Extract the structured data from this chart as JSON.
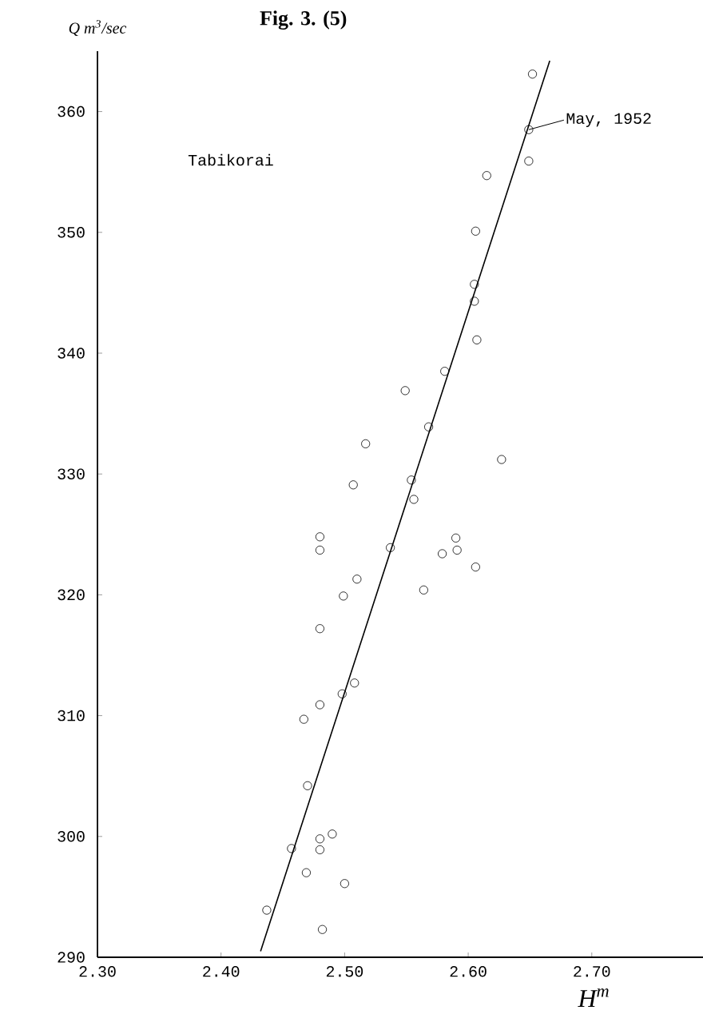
{
  "chart_data": {
    "type": "scatter",
    "title": "Fig. 3.  (5)",
    "xlabel": "H$^{m}$",
    "ylabel": "Q m$^{3}$/sec",
    "xlim": [
      2.3,
      2.79
    ],
    "ylim": [
      290,
      365
    ],
    "xticks": [
      {
        "value": 2.3,
        "label": "2.30"
      },
      {
        "value": 2.4,
        "label": "2.40"
      },
      {
        "value": 2.5,
        "label": "2.50"
      },
      {
        "value": 2.6,
        "label": "2.60"
      },
      {
        "value": 2.7,
        "label": "2.70"
      }
    ],
    "yticks": [
      290,
      300,
      310,
      320,
      330,
      340,
      350,
      360
    ],
    "marker": "circle",
    "series": [
      {
        "color": "#000000",
        "x": [
          2.652,
          2.649,
          2.649,
          2.615,
          2.606,
          2.605,
          2.605,
          2.607,
          2.581,
          2.549,
          2.568,
          2.517,
          2.627,
          2.554,
          2.507,
          2.556,
          2.48,
          2.48,
          2.59,
          2.591,
          2.579,
          2.537,
          2.606,
          2.51,
          2.499,
          2.564,
          2.48,
          2.508,
          2.498,
          2.48,
          2.467,
          2.47,
          2.457,
          2.48,
          2.49,
          2.48,
          2.469,
          2.5,
          2.437,
          2.482
        ],
        "values": [
          363.1,
          358.5,
          355.9,
          354.7,
          350.1,
          345.7,
          344.3,
          341.1,
          338.5,
          336.9,
          333.9,
          332.5,
          331.2,
          329.5,
          329.1,
          327.9,
          324.8,
          323.7,
          324.7,
          323.7,
          323.4,
          323.9,
          322.3,
          321.3,
          319.9,
          320.4,
          317.2,
          312.7,
          311.8,
          310.9,
          309.7,
          304.2,
          299.0,
          299.8,
          300.2,
          298.9,
          297.0,
          296.1,
          293.9,
          292.3
        ]
      },
      {
        "type": "line",
        "marker": "none",
        "color": "#000000",
        "x": [
          2.432,
          2.666
        ],
        "values": [
          290.5,
          364.2
        ]
      }
    ],
    "annotations": [
      "Tabikorai",
      {
        "text": "May, 1952",
        "x": 2.649,
        "y": 358.5
      }
    ]
  }
}
